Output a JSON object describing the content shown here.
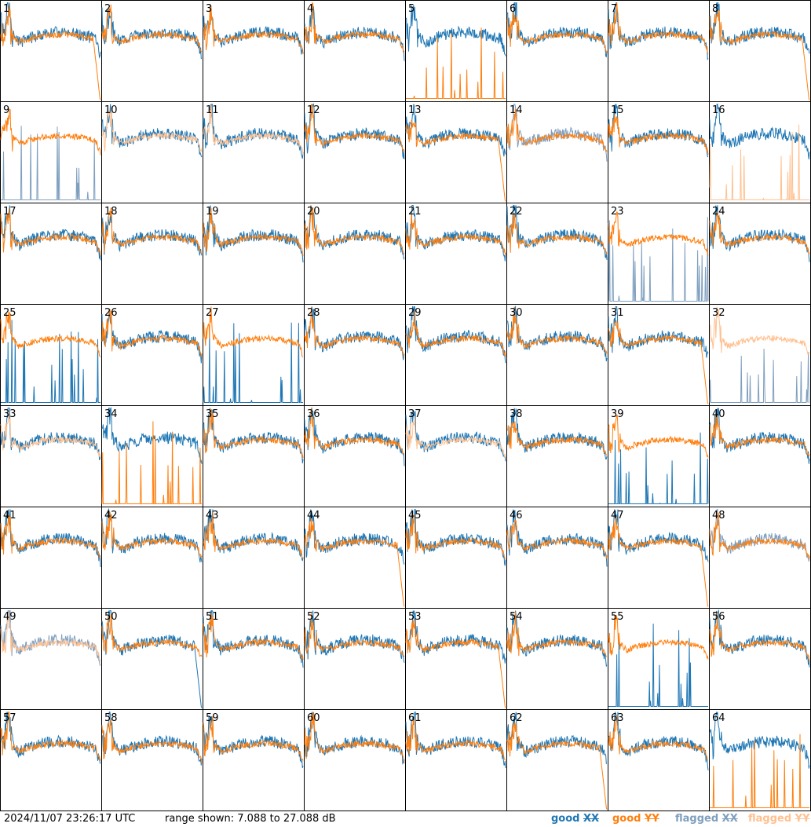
{
  "timestamp": "2024/11/07 23:26:17 UTC",
  "range_text": "range shown: 7.088 to 27.088 dB",
  "legend": {
    "good_xx": {
      "prefix": "good ",
      "mark": "XX",
      "color": "#1f77b4"
    },
    "good_yy": {
      "prefix": "good ",
      "mark": "YY",
      "color": "#ff7f0e"
    },
    "flagged_xx": {
      "prefix": "flagged ",
      "mark": "XX",
      "color": "#7f9fbf"
    },
    "flagged_yy": {
      "prefix": "flagged ",
      "mark": "YY",
      "color": "#ffc08f"
    }
  },
  "chart_data": {
    "type": "line",
    "layout": "8x8 small multiples",
    "ylim_db": [
      7.088,
      27.088
    ],
    "series_names": [
      "good XX",
      "good YY",
      "flagged XX",
      "flagged YY"
    ],
    "panels": [
      {
        "id": "1",
        "xx": "good",
        "yy": "good",
        "yy_shape": "drop"
      },
      {
        "id": "2",
        "xx": "good",
        "yy": "good"
      },
      {
        "id": "3",
        "xx": "good",
        "yy": "good"
      },
      {
        "id": "4",
        "xx": "good",
        "yy": "good"
      },
      {
        "id": "5",
        "xx": "good",
        "yy": "good",
        "yy_shape": "spikes"
      },
      {
        "id": "6",
        "xx": "good",
        "yy": "good"
      },
      {
        "id": "7",
        "xx": "good",
        "yy": "good"
      },
      {
        "id": "8",
        "xx": "good",
        "yy": "good",
        "yy_shape": "drop"
      },
      {
        "id": "9",
        "xx": "flagged",
        "yy": "good",
        "xx_shape": "spikes"
      },
      {
        "id": "10",
        "xx": "good",
        "yy": "flagged"
      },
      {
        "id": "11",
        "xx": "good",
        "yy": "flagged"
      },
      {
        "id": "12",
        "xx": "good",
        "yy": "good"
      },
      {
        "id": "13",
        "xx": "good",
        "yy": "good",
        "yy_shape": "drop"
      },
      {
        "id": "14",
        "xx": "flagged",
        "yy": "good"
      },
      {
        "id": "15",
        "xx": "good",
        "yy": "good"
      },
      {
        "id": "16",
        "xx": "good",
        "yy": "flagged",
        "yy_shape": "spikes"
      },
      {
        "id": "17",
        "xx": "good",
        "yy": "good"
      },
      {
        "id": "18",
        "xx": "good",
        "yy": "good"
      },
      {
        "id": "19",
        "xx": "good",
        "yy": "good"
      },
      {
        "id": "20",
        "xx": "good",
        "yy": "good"
      },
      {
        "id": "21",
        "xx": "good",
        "yy": "good"
      },
      {
        "id": "22",
        "xx": "good",
        "yy": "good"
      },
      {
        "id": "23",
        "xx": "flagged",
        "yy": "good",
        "xx_shape": "spikes"
      },
      {
        "id": "24",
        "xx": "good",
        "yy": "good"
      },
      {
        "id": "25",
        "xx": "good",
        "yy": "good",
        "xx_shape": "spikes"
      },
      {
        "id": "26",
        "xx": "good",
        "yy": "good"
      },
      {
        "id": "27",
        "xx": "good",
        "yy": "good",
        "xx_shape": "spikes"
      },
      {
        "id": "28",
        "xx": "good",
        "yy": "good"
      },
      {
        "id": "29",
        "xx": "good",
        "yy": "good"
      },
      {
        "id": "30",
        "xx": "good",
        "yy": "good"
      },
      {
        "id": "31",
        "xx": "good",
        "yy": "good",
        "yy_shape": "drop"
      },
      {
        "id": "32",
        "xx": "flagged",
        "yy": "flagged",
        "xx_shape": "spikes"
      },
      {
        "id": "33",
        "xx": "good",
        "yy": "flagged"
      },
      {
        "id": "34",
        "xx": "good",
        "yy": "good",
        "yy_shape": "spikes"
      },
      {
        "id": "35",
        "xx": "good",
        "yy": "good"
      },
      {
        "id": "36",
        "xx": "good",
        "yy": "good"
      },
      {
        "id": "37",
        "xx": "good",
        "yy": "flagged"
      },
      {
        "id": "38",
        "xx": "good",
        "yy": "good"
      },
      {
        "id": "39",
        "xx": "good",
        "yy": "good",
        "xx_shape": "spikes"
      },
      {
        "id": "40",
        "xx": "good",
        "yy": "good"
      },
      {
        "id": "41",
        "xx": "good",
        "yy": "good"
      },
      {
        "id": "42",
        "xx": "good",
        "yy": "good"
      },
      {
        "id": "43",
        "xx": "good",
        "yy": "good"
      },
      {
        "id": "44",
        "xx": "good",
        "yy": "good",
        "yy_shape": "drop"
      },
      {
        "id": "45",
        "xx": "good",
        "yy": "good"
      },
      {
        "id": "46",
        "xx": "good",
        "yy": "good"
      },
      {
        "id": "47",
        "xx": "good",
        "yy": "good",
        "yy_shape": "drop"
      },
      {
        "id": "48",
        "xx": "flagged",
        "yy": "good"
      },
      {
        "id": "49",
        "xx": "flagged",
        "yy": "flagged"
      },
      {
        "id": "50",
        "xx": "good",
        "yy": "good",
        "xx_shape": "drop"
      },
      {
        "id": "51",
        "xx": "good",
        "yy": "good"
      },
      {
        "id": "52",
        "xx": "good",
        "yy": "good"
      },
      {
        "id": "53",
        "xx": "good",
        "yy": "good",
        "yy_shape": "drop"
      },
      {
        "id": "54",
        "xx": "good",
        "yy": "good"
      },
      {
        "id": "55",
        "xx": "good",
        "yy": "good",
        "xx_shape": "spikes"
      },
      {
        "id": "56",
        "xx": "good",
        "yy": "good"
      },
      {
        "id": "57",
        "xx": "good",
        "yy": "good"
      },
      {
        "id": "58",
        "xx": "good",
        "yy": "good"
      },
      {
        "id": "59",
        "xx": "good",
        "yy": "good"
      },
      {
        "id": "60",
        "xx": "good",
        "yy": "good"
      },
      {
        "id": "61",
        "xx": "good",
        "yy": "good"
      },
      {
        "id": "62",
        "xx": "good",
        "yy": "good",
        "yy_shape": "drop"
      },
      {
        "id": "63",
        "xx": "good",
        "yy": "good"
      },
      {
        "id": "64",
        "xx": "good",
        "yy": "good",
        "yy_shape": "spikes"
      }
    ]
  }
}
